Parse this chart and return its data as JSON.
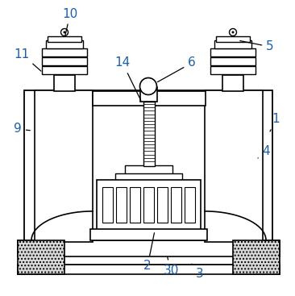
{
  "bg_color": "#ffffff",
  "lc": "#000000",
  "label_color": "#1a5fa8",
  "figsize": [
    3.66,
    3.67
  ],
  "dpi": 100,
  "labels": [
    [
      "10",
      87,
      17,
      80,
      48
    ],
    [
      "11",
      27,
      67,
      53,
      90
    ],
    [
      "9",
      22,
      160,
      40,
      162
    ],
    [
      "14",
      152,
      78,
      176,
      127
    ],
    [
      "6",
      238,
      78,
      193,
      103
    ],
    [
      "5",
      335,
      58,
      295,
      50
    ],
    [
      "1",
      342,
      148,
      335,
      163
    ],
    [
      "4",
      330,
      188,
      320,
      196
    ],
    [
      "2",
      183,
      330,
      192,
      286
    ],
    [
      "30",
      212,
      335,
      207,
      316
    ],
    [
      "3",
      248,
      340,
      236,
      325
    ]
  ]
}
